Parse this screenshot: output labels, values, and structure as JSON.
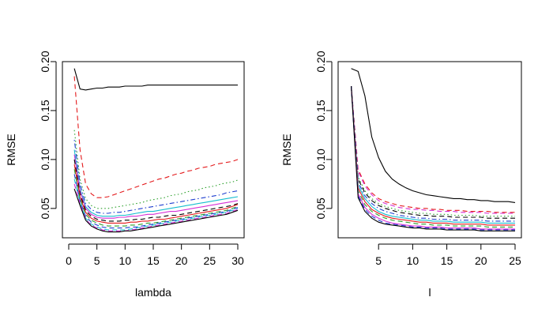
{
  "chart_data": [
    {
      "type": "line",
      "xlabel": "lambda",
      "ylabel": "RMSE",
      "xlim": [
        0,
        30
      ],
      "ylim": [
        0.02,
        0.2
      ],
      "xticks": [
        0,
        5,
        10,
        15,
        20,
        25,
        30
      ],
      "yticks": [
        0.05,
        0.1,
        0.15,
        0.2
      ],
      "xtick_labels": [
        "0",
        "5",
        "10",
        "15",
        "20",
        "25",
        "30"
      ],
      "ytick_labels": [
        "0.05",
        "0.10",
        "0.15",
        "0.20"
      ],
      "grid": false,
      "legend": "none",
      "x": [
        1,
        2,
        3,
        4,
        5,
        6,
        7,
        8,
        9,
        10,
        11,
        12,
        13,
        14,
        15,
        16,
        17,
        18,
        19,
        20,
        21,
        22,
        23,
        24,
        25,
        26,
        27,
        28,
        29,
        30
      ],
      "series": [
        {
          "color": "#000000",
          "dash": "solid",
          "values": [
            0.193,
            0.172,
            0.171,
            0.172,
            0.173,
            0.173,
            0.174,
            0.174,
            0.174,
            0.175,
            0.175,
            0.175,
            0.175,
            0.176,
            0.176,
            0.176,
            0.176,
            0.176,
            0.176,
            0.176,
            0.176,
            0.176,
            0.176,
            0.176,
            0.176,
            0.176,
            0.176,
            0.176,
            0.176,
            0.176
          ]
        },
        {
          "color": "#e41a1c",
          "dash": "dashed",
          "values": [
            0.185,
            0.11,
            0.075,
            0.065,
            0.061,
            0.061,
            0.062,
            0.064,
            0.066,
            0.068,
            0.07,
            0.072,
            0.074,
            0.076,
            0.078,
            0.08,
            0.081,
            0.083,
            0.085,
            0.086,
            0.088,
            0.089,
            0.091,
            0.092,
            0.093,
            0.095,
            0.096,
            0.097,
            0.098,
            0.1
          ]
        },
        {
          "color": "#2ca02c",
          "dash": "dotted",
          "values": [
            0.13,
            0.08,
            0.06,
            0.053,
            0.05,
            0.05,
            0.05,
            0.051,
            0.052,
            0.053,
            0.054,
            0.055,
            0.056,
            0.058,
            0.059,
            0.06,
            0.061,
            0.063,
            0.064,
            0.065,
            0.067,
            0.068,
            0.069,
            0.071,
            0.072,
            0.073,
            0.075,
            0.076,
            0.077,
            0.079
          ]
        },
        {
          "color": "#1f3fd0",
          "dash": "dotdash",
          "values": [
            0.12,
            0.075,
            0.055,
            0.049,
            0.046,
            0.045,
            0.045,
            0.046,
            0.046,
            0.047,
            0.048,
            0.049,
            0.05,
            0.051,
            0.052,
            0.053,
            0.054,
            0.055,
            0.056,
            0.057,
            0.058,
            0.059,
            0.06,
            0.061,
            0.062,
            0.063,
            0.064,
            0.066,
            0.067,
            0.068
          ]
        },
        {
          "color": "#17becf",
          "dash": "solid",
          "values": [
            0.11,
            0.07,
            0.052,
            0.046,
            0.043,
            0.042,
            0.042,
            0.042,
            0.043,
            0.043,
            0.044,
            0.045,
            0.046,
            0.047,
            0.047,
            0.048,
            0.049,
            0.05,
            0.051,
            0.052,
            0.053,
            0.054,
            0.055,
            0.056,
            0.057,
            0.058,
            0.059,
            0.06,
            0.061,
            0.062
          ]
        },
        {
          "color": "#d62fd6",
          "dash": "solid",
          "values": [
            0.105,
            0.068,
            0.05,
            0.044,
            0.041,
            0.04,
            0.04,
            0.04,
            0.041,
            0.041,
            0.042,
            0.042,
            0.043,
            0.044,
            0.044,
            0.045,
            0.046,
            0.047,
            0.047,
            0.048,
            0.049,
            0.05,
            0.051,
            0.052,
            0.053,
            0.054,
            0.055,
            0.056,
            0.057,
            0.058
          ]
        },
        {
          "color": "#000000",
          "dash": "dashed",
          "values": [
            0.1,
            0.065,
            0.048,
            0.042,
            0.039,
            0.038,
            0.037,
            0.037,
            0.037,
            0.038,
            0.038,
            0.039,
            0.039,
            0.04,
            0.041,
            0.041,
            0.042,
            0.043,
            0.043,
            0.044,
            0.045,
            0.046,
            0.047,
            0.048,
            0.049,
            0.05,
            0.051,
            0.052,
            0.053,
            0.055
          ]
        },
        {
          "color": "#e41a1c",
          "dash": "solid",
          "values": [
            0.095,
            0.062,
            0.046,
            0.04,
            0.037,
            0.036,
            0.035,
            0.035,
            0.035,
            0.035,
            0.036,
            0.036,
            0.037,
            0.037,
            0.038,
            0.039,
            0.039,
            0.04,
            0.041,
            0.042,
            0.043,
            0.044,
            0.045,
            0.046,
            0.047,
            0.048,
            0.049,
            0.05,
            0.052,
            0.054
          ]
        },
        {
          "color": "#2ca02c",
          "dash": "dashed",
          "values": [
            0.09,
            0.06,
            0.044,
            0.038,
            0.035,
            0.033,
            0.032,
            0.032,
            0.032,
            0.032,
            0.033,
            0.033,
            0.034,
            0.035,
            0.035,
            0.036,
            0.037,
            0.038,
            0.039,
            0.04,
            0.041,
            0.042,
            0.043,
            0.044,
            0.045,
            0.046,
            0.047,
            0.048,
            0.05,
            0.052
          ]
        },
        {
          "color": "#1f3fd0",
          "dash": "dashed",
          "values": [
            0.085,
            0.058,
            0.042,
            0.036,
            0.033,
            0.031,
            0.03,
            0.03,
            0.03,
            0.03,
            0.031,
            0.031,
            0.032,
            0.033,
            0.034,
            0.035,
            0.036,
            0.037,
            0.038,
            0.039,
            0.04,
            0.041,
            0.042,
            0.043,
            0.044,
            0.045,
            0.046,
            0.047,
            0.049,
            0.051
          ]
        },
        {
          "color": "#17becf",
          "dash": "dashed",
          "values": [
            0.08,
            0.056,
            0.04,
            0.034,
            0.031,
            0.029,
            0.028,
            0.028,
            0.028,
            0.028,
            0.029,
            0.03,
            0.031,
            0.032,
            0.033,
            0.034,
            0.035,
            0.036,
            0.037,
            0.038,
            0.039,
            0.04,
            0.041,
            0.042,
            0.043,
            0.044,
            0.045,
            0.046,
            0.048,
            0.05
          ]
        },
        {
          "color": "#d62fd6",
          "dash": "dashed",
          "values": [
            0.075,
            0.055,
            0.039,
            0.033,
            0.03,
            0.028,
            0.027,
            0.027,
            0.027,
            0.027,
            0.028,
            0.029,
            0.03,
            0.031,
            0.032,
            0.033,
            0.034,
            0.035,
            0.036,
            0.037,
            0.038,
            0.039,
            0.04,
            0.041,
            0.042,
            0.043,
            0.044,
            0.045,
            0.047,
            0.049
          ]
        },
        {
          "color": "#000000",
          "dash": "solid",
          "values": [
            0.07,
            0.053,
            0.038,
            0.032,
            0.029,
            0.027,
            0.026,
            0.026,
            0.026,
            0.027,
            0.027,
            0.028,
            0.029,
            0.03,
            0.031,
            0.032,
            0.033,
            0.034,
            0.035,
            0.036,
            0.037,
            0.038,
            0.039,
            0.04,
            0.041,
            0.042,
            0.043,
            0.044,
            0.046,
            0.048
          ]
        }
      ]
    },
    {
      "type": "line",
      "xlabel": "l",
      "ylabel": "RMSE",
      "xlim": [
        0,
        25
      ],
      "ylim": [
        0.02,
        0.2
      ],
      "xticks": [
        5,
        10,
        15,
        20,
        25
      ],
      "yticks": [
        0.05,
        0.1,
        0.15,
        0.2
      ],
      "xtick_labels": [
        "5",
        "10",
        "15",
        "20",
        "25"
      ],
      "ytick_labels": [
        "0.05",
        "0.10",
        "0.15",
        "0.20"
      ],
      "grid": false,
      "legend": "none",
      "x": [
        1,
        2,
        3,
        4,
        5,
        6,
        7,
        8,
        9,
        10,
        11,
        12,
        13,
        14,
        15,
        16,
        17,
        18,
        19,
        20,
        21,
        22,
        23,
        24,
        25
      ],
      "series": [
        {
          "color": "#000000",
          "dash": "solid",
          "values": [
            0.193,
            0.19,
            0.165,
            0.123,
            0.102,
            0.088,
            0.08,
            0.075,
            0.071,
            0.068,
            0.066,
            0.064,
            0.063,
            0.062,
            0.061,
            0.06,
            0.06,
            0.059,
            0.059,
            0.058,
            0.058,
            0.057,
            0.057,
            0.057,
            0.056
          ]
        },
        {
          "color": "#e41a1c",
          "dash": "dashed",
          "values": [
            0.175,
            0.09,
            0.075,
            0.066,
            0.06,
            0.057,
            0.055,
            0.053,
            0.052,
            0.051,
            0.05,
            0.05,
            0.049,
            0.049,
            0.048,
            0.048,
            0.048,
            0.047,
            0.047,
            0.047,
            0.047,
            0.046,
            0.046,
            0.046,
            0.046
          ]
        },
        {
          "color": "#d62fd6",
          "dash": "dashed",
          "values": [
            0.175,
            0.088,
            0.073,
            0.064,
            0.058,
            0.055,
            0.053,
            0.051,
            0.05,
            0.049,
            0.049,
            0.048,
            0.048,
            0.047,
            0.047,
            0.047,
            0.046,
            0.046,
            0.046,
            0.046,
            0.045,
            0.045,
            0.045,
            0.045,
            0.045
          ]
        },
        {
          "color": "#2ca02c",
          "dash": "dotted",
          "values": [
            0.175,
            0.082,
            0.068,
            0.06,
            0.055,
            0.052,
            0.05,
            0.048,
            0.047,
            0.046,
            0.045,
            0.045,
            0.044,
            0.044,
            0.044,
            0.043,
            0.043,
            0.043,
            0.043,
            0.042,
            0.042,
            0.042,
            0.042,
            0.042,
            0.042
          ]
        },
        {
          "color": "#000000",
          "dash": "dashed",
          "values": [
            0.175,
            0.08,
            0.066,
            0.058,
            0.053,
            0.05,
            0.048,
            0.046,
            0.045,
            0.044,
            0.043,
            0.043,
            0.042,
            0.042,
            0.042,
            0.041,
            0.041,
            0.041,
            0.041,
            0.041,
            0.04,
            0.04,
            0.04,
            0.04,
            0.04
          ]
        },
        {
          "color": "#1f3fd0",
          "dash": "dotdash",
          "values": [
            0.175,
            0.077,
            0.063,
            0.055,
            0.05,
            0.047,
            0.045,
            0.043,
            0.042,
            0.041,
            0.04,
            0.04,
            0.039,
            0.039,
            0.039,
            0.038,
            0.038,
            0.038,
            0.038,
            0.038,
            0.037,
            0.037,
            0.037,
            0.037,
            0.037
          ]
        },
        {
          "color": "#17becf",
          "dash": "solid",
          "values": [
            0.175,
            0.074,
            0.06,
            0.052,
            0.047,
            0.044,
            0.042,
            0.041,
            0.04,
            0.039,
            0.038,
            0.038,
            0.037,
            0.037,
            0.037,
            0.036,
            0.036,
            0.036,
            0.036,
            0.036,
            0.035,
            0.035,
            0.035,
            0.035,
            0.035
          ]
        },
        {
          "color": "#e41a1c",
          "dash": "solid",
          "values": [
            0.175,
            0.071,
            0.057,
            0.049,
            0.045,
            0.042,
            0.04,
            0.039,
            0.038,
            0.037,
            0.036,
            0.036,
            0.035,
            0.035,
            0.035,
            0.034,
            0.034,
            0.034,
            0.034,
            0.034,
            0.033,
            0.033,
            0.033,
            0.033,
            0.033
          ]
        },
        {
          "color": "#2ca02c",
          "dash": "dashed",
          "values": [
            0.175,
            0.068,
            0.054,
            0.047,
            0.043,
            0.04,
            0.038,
            0.037,
            0.036,
            0.035,
            0.034,
            0.034,
            0.033,
            0.033,
            0.033,
            0.032,
            0.032,
            0.032,
            0.032,
            0.032,
            0.031,
            0.031,
            0.031,
            0.031,
            0.031
          ]
        },
        {
          "color": "#d62fd6",
          "dash": "solid",
          "values": [
            0.175,
            0.065,
            0.051,
            0.044,
            0.04,
            0.037,
            0.035,
            0.034,
            0.033,
            0.032,
            0.032,
            0.031,
            0.031,
            0.031,
            0.03,
            0.03,
            0.03,
            0.03,
            0.03,
            0.029,
            0.029,
            0.029,
            0.029,
            0.029,
            0.029
          ]
        },
        {
          "color": "#1f3fd0",
          "dash": "dashed",
          "values": [
            0.175,
            0.063,
            0.049,
            0.042,
            0.038,
            0.035,
            0.034,
            0.033,
            0.032,
            0.031,
            0.031,
            0.03,
            0.03,
            0.03,
            0.029,
            0.029,
            0.029,
            0.029,
            0.029,
            0.028,
            0.028,
            0.028,
            0.028,
            0.028,
            0.028
          ]
        },
        {
          "color": "#000000",
          "dash": "solid",
          "values": [
            0.175,
            0.061,
            0.047,
            0.04,
            0.036,
            0.034,
            0.033,
            0.032,
            0.031,
            0.03,
            0.03,
            0.029,
            0.029,
            0.029,
            0.028,
            0.028,
            0.028,
            0.028,
            0.028,
            0.027,
            0.027,
            0.027,
            0.027,
            0.027,
            0.027
          ]
        }
      ]
    }
  ]
}
